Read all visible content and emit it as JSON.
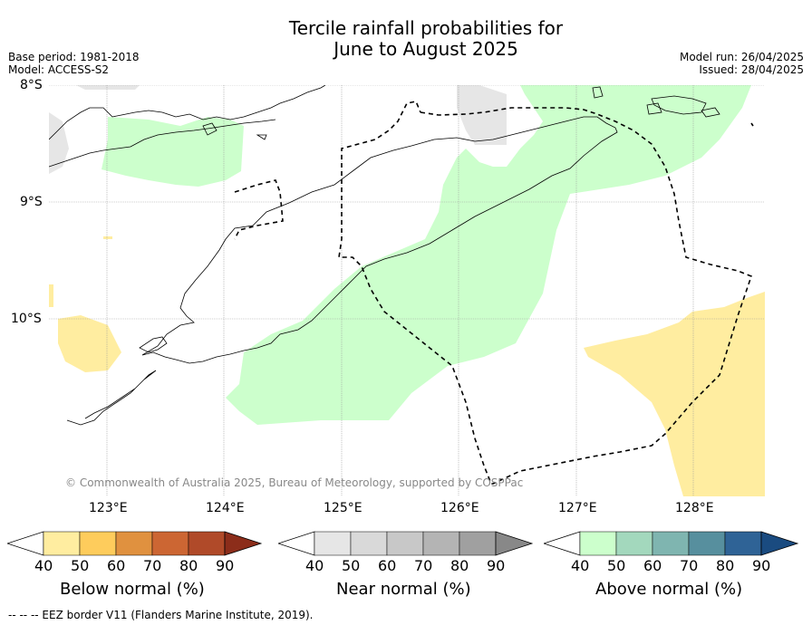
{
  "title_line1": "Tercile rainfall probabilities for",
  "title_line2": "June to August 2025",
  "meta_left": {
    "base_period": "Base period: 1981-2018",
    "model": "Model: ACCESS-S2"
  },
  "meta_right": {
    "model_run": "Model run: 26/04/2025",
    "issued": "Issued: 28/04/2025"
  },
  "lat_labels": [
    "8°S",
    "9°S",
    "10°S"
  ],
  "lon_labels": [
    "123°E",
    "124°E",
    "125°E",
    "126°E",
    "127°E",
    "128°E"
  ],
  "copyright": "© Commonwealth of Australia 2025, Bureau of Meteorology, supported by COSPPac",
  "legend_eez": "-- -- -- EEZ border V11 (Flanders Marine Institute, 2019).",
  "colorbars": [
    {
      "label": "Below normal (%)",
      "ticks": [
        "40",
        "50",
        "60",
        "70",
        "80",
        "90"
      ],
      "colors": [
        "#ffffff",
        "#ffeda0",
        "#fecc5c",
        "#e0913f",
        "#cc6633",
        "#b04a29",
        "#8c2d1a"
      ]
    },
    {
      "label": "Near normal (%)",
      "ticks": [
        "40",
        "50",
        "60",
        "70",
        "80",
        "90"
      ],
      "colors": [
        "#ffffff",
        "#e6e6e6",
        "#d9d9d9",
        "#c8c8c8",
        "#b4b4b4",
        "#a0a0a0",
        "#888888"
      ]
    },
    {
      "label": "Above normal (%)",
      "ticks": [
        "40",
        "50",
        "60",
        "70",
        "80",
        "90"
      ],
      "colors": [
        "#ffffff",
        "#ccffcc",
        "#a3d8bd",
        "#7fb5b0",
        "#578f9e",
        "#2f6396",
        "#1a4b80"
      ]
    }
  ],
  "colors": {
    "above_normal_fill": "#ccffcc",
    "below_normal_fill": "#ffeda0",
    "near_normal_fill": "#e6e6e6",
    "grid": "#999999",
    "coast": "#000000",
    "eez": "#000000"
  }
}
